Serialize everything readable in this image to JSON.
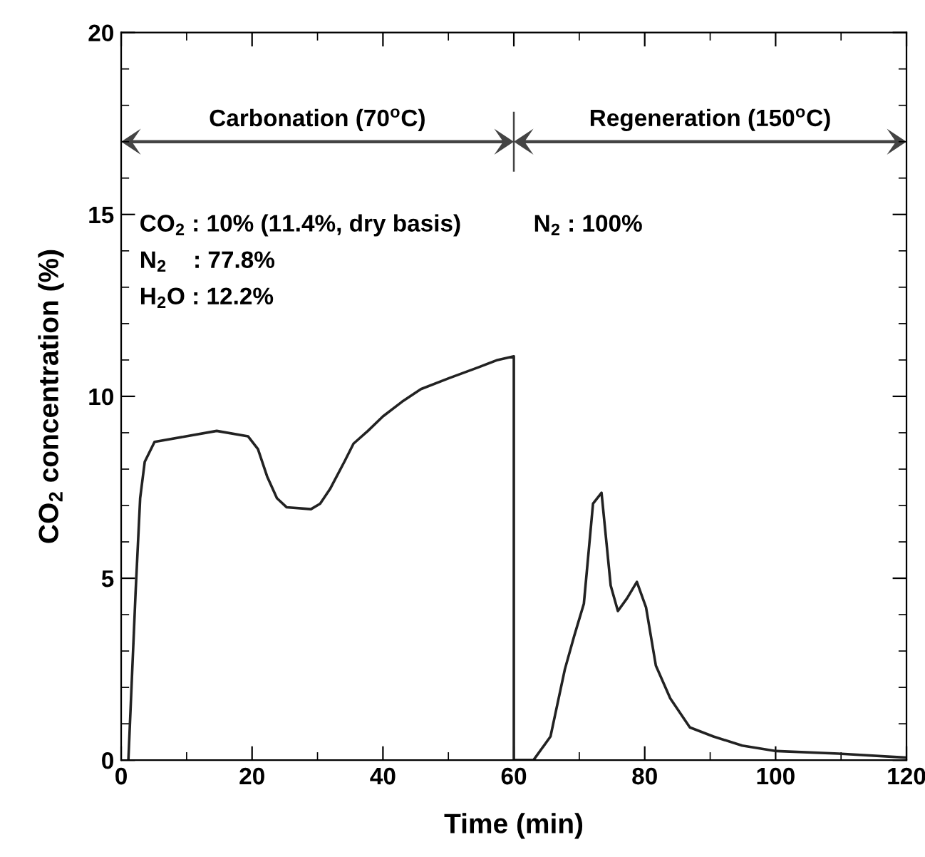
{
  "chart_data": {
    "type": "line",
    "xlabel": "Time (min)",
    "ylabel": "CO$_{2}$ concentration (%)",
    "xlim": [
      0,
      120
    ],
    "ylim": [
      0,
      20
    ],
    "xticks": [
      0,
      20,
      40,
      60,
      80,
      100,
      120
    ],
    "yticks": [
      0,
      5,
      10,
      15,
      20
    ],
    "grid": false,
    "marker": "none",
    "line_style": "solid",
    "series": [
      {
        "color": "#222222",
        "x": [
          1.1,
          2.2,
          2.9,
          3.6,
          5.1,
          9.9,
          14.6,
          19.4,
          20.9,
          22.3,
          23.8,
          25.3,
          29.0,
          30.4,
          31.9,
          34.1,
          35.5,
          37.7,
          40.0,
          42.9,
          45.8,
          50.1,
          54.6,
          57.5,
          60,
          60,
          63.0,
          65.6,
          67.8,
          69.2,
          70.7,
          72.1,
          73.4,
          74.8,
          75.9,
          77.3,
          78.8,
          80.2,
          81.7,
          83.9,
          86.9,
          90.5,
          94.9,
          100.1,
          109.6,
          120
        ],
        "values": [
          0,
          4.6,
          7.2,
          8.2,
          8.75,
          8.9,
          9.05,
          8.9,
          8.55,
          7.8,
          7.2,
          6.95,
          6.9,
          7.05,
          7.45,
          8.2,
          8.7,
          9.05,
          9.45,
          9.85,
          10.2,
          10.5,
          10.8,
          11.0,
          11.1,
          0,
          0,
          0.65,
          2.5,
          3.4,
          4.3,
          7.05,
          7.35,
          4.8,
          4.1,
          4.45,
          4.9,
          4.2,
          2.6,
          1.7,
          0.9,
          0.65,
          0.4,
          0.25,
          0.18,
          0.07
        ]
      }
    ],
    "annotations": [
      "Carbonation (70$^{o}$C)",
      "Regeneration (150$^{o}$C)",
      "CO$_{2}$ : 10% (11.4%, dry basis)",
      "N$_{2}$    : 77.8%",
      "H$_{2}$O : 12.2%",
      "N$_{2}$ : 100%"
    ]
  }
}
